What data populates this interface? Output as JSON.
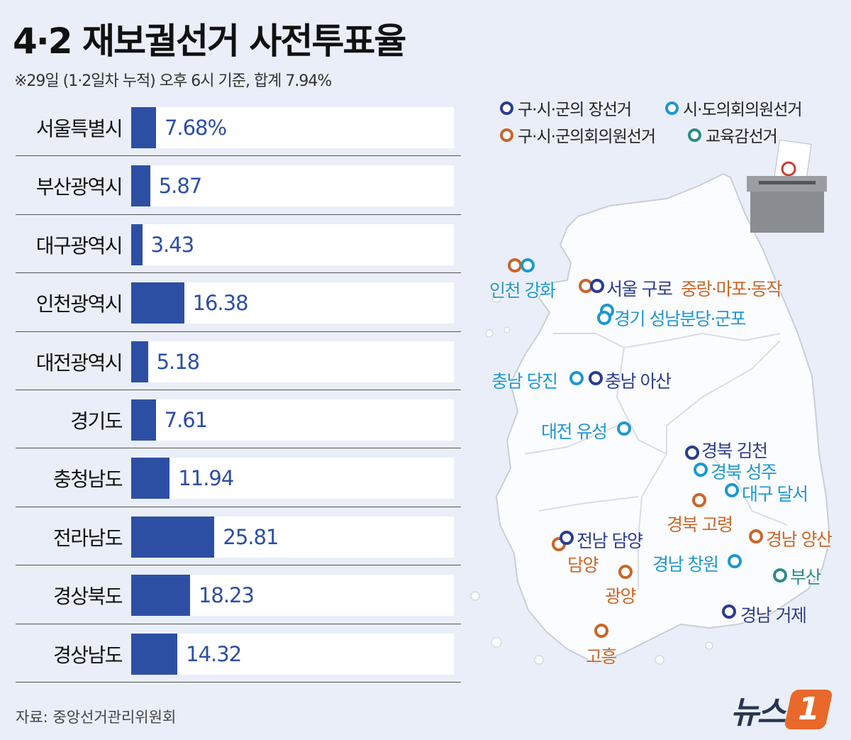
{
  "title": "4·2 재보궐선거 사전투표율",
  "subtitle": "※29일 (1·2일차 누적) 오후 6시 기준, 합계 7.94%",
  "source": "자료: 중앙선거관리위원회",
  "logo": {
    "text": "뉴스",
    "number": "1"
  },
  "colors": {
    "bar": "#2d4fa3",
    "navy": "#2b3c8f",
    "blue": "#1f97cf",
    "orange": "#c9662a",
    "teal": "#2e8a8a"
  },
  "chart_data": {
    "type": "bar",
    "orientation": "horizontal",
    "title": "4·2 재보궐선거 사전투표율",
    "unit": "%",
    "xlim": [
      0,
      100
    ],
    "categories": [
      "서울특별시",
      "부산광역시",
      "대구광역시",
      "인천광역시",
      "대전광역시",
      "경기도",
      "충청남도",
      "전라남도",
      "경상북도",
      "경상남도"
    ],
    "values": [
      7.68,
      5.87,
      3.43,
      16.38,
      5.18,
      7.61,
      11.94,
      25.81,
      18.23,
      14.32
    ],
    "value_labels": [
      "7.68%",
      "5.87",
      "3.43",
      "16.38",
      "5.18",
      "7.61",
      "11.94",
      "25.81",
      "18.23",
      "14.32"
    ]
  },
  "legend": [
    {
      "label": "구·시·군의 장선거",
      "color": "navy"
    },
    {
      "label": "시·도의회의원선거",
      "color": "blue"
    },
    {
      "label": "구·시·군의회의원선거",
      "color": "orange"
    },
    {
      "label": "교육감선거",
      "color": "teal"
    }
  ],
  "map_labels": [
    "인천 강화",
    "서울 구로",
    "중랑·마포·동작",
    "경기 성남분당·군포",
    "충남 당진",
    "충남 아산",
    "대전 유성",
    "경북 김천",
    "경북 성주",
    "대구 달서",
    "경북 고령",
    "전남 담양",
    "담양",
    "경남 양산",
    "경남 창원",
    "광양",
    "부산",
    "경남 거제",
    "고흥"
  ]
}
